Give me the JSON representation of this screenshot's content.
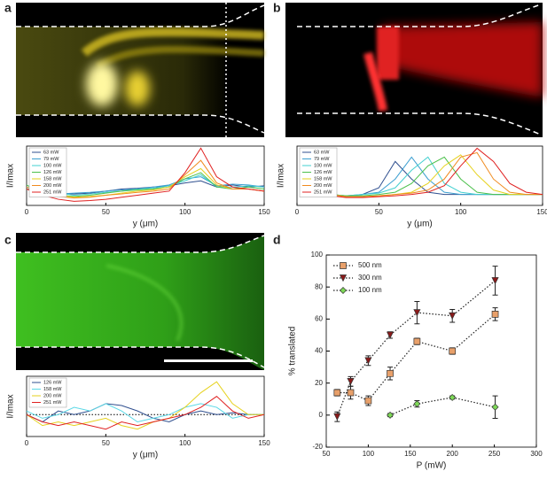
{
  "chart_data": [
    {
      "type": "line",
      "panel": "a",
      "xlabel": "y (μm)",
      "ylabel": "I/Imax",
      "x": [
        0,
        10,
        20,
        30,
        40,
        50,
        60,
        70,
        80,
        90,
        100,
        110,
        120,
        130,
        140,
        150
      ],
      "xlim": [
        0,
        150
      ],
      "xticks": [
        0,
        50,
        100,
        150
      ],
      "ylim": [
        -0.4,
        1.05
      ],
      "series": [
        {
          "name": "63 mW",
          "color": "#2f4f8f",
          "values": [
            0,
            -0.05,
            -0.1,
            -0.12,
            -0.1,
            -0.05,
            0,
            0.02,
            0.05,
            0.08,
            0.15,
            0.2,
            0.05,
            0.1,
            0.05,
            0.08
          ]
        },
        {
          "name": "79 mW",
          "color": "#3c9fd0",
          "values": [
            0,
            -0.08,
            -0.12,
            -0.1,
            -0.08,
            -0.05,
            -0.02,
            0,
            0.05,
            0.1,
            0.25,
            0.3,
            0.08,
            0.12,
            0.1,
            0.05
          ]
        },
        {
          "name": "100 mW",
          "color": "#43d0d0",
          "values": [
            0.05,
            -0.05,
            -0.1,
            -0.15,
            -0.12,
            -0.08,
            -0.05,
            0,
            0.02,
            0.08,
            0.2,
            0.35,
            0.05,
            0.05,
            0.08,
            0.05
          ]
        },
        {
          "name": "126 mW",
          "color": "#4cc04c",
          "values": [
            0.1,
            -0.1,
            -0.15,
            -0.18,
            -0.15,
            -0.1,
            -0.05,
            -0.02,
            0,
            0.05,
            0.25,
            0.4,
            0.05,
            0,
            0.05,
            0
          ]
        },
        {
          "name": "158 mW",
          "color": "#e6d21e",
          "values": [
            0,
            -0.12,
            -0.15,
            -0.2,
            -0.18,
            -0.15,
            -0.1,
            -0.05,
            -0.02,
            0.05,
            0.3,
            0.5,
            0.1,
            0,
            0,
            -0.05
          ]
        },
        {
          "name": "200 mW",
          "color": "#f08a1e",
          "values": [
            0.05,
            -0.1,
            -0.18,
            -0.22,
            -0.2,
            -0.15,
            -0.12,
            -0.08,
            -0.05,
            0,
            0.35,
            0.7,
            0.15,
            0,
            0,
            -0.05
          ]
        },
        {
          "name": "251 mW",
          "color": "#e02020",
          "values": [
            0,
            -0.15,
            -0.25,
            -0.3,
            -0.28,
            -0.25,
            -0.2,
            -0.15,
            -0.1,
            -0.05,
            0.4,
            1.0,
            0.3,
            0.05,
            0,
            -0.05
          ]
        }
      ]
    },
    {
      "type": "line",
      "panel": "b",
      "xlabel": "y (μm)",
      "ylabel": "I/Imax",
      "x": [
        0,
        10,
        20,
        30,
        40,
        50,
        60,
        70,
        80,
        90,
        100,
        110,
        120,
        130,
        140,
        150
      ],
      "xlim": [
        0,
        150
      ],
      "xticks": [
        0,
        50,
        100,
        150
      ],
      "ylim": [
        -0.3,
        1.05
      ],
      "series": [
        {
          "name": "63 mW",
          "color": "#2f4f8f",
          "values": [
            null,
            0,
            -0.05,
            -0.1,
            -0.05,
            0.1,
            0.7,
            0.3,
            0,
            -0.05,
            -0.05,
            -0.05,
            -0.05,
            -0.05,
            -0.05,
            -0.05
          ]
        },
        {
          "name": "79 mW",
          "color": "#3c9fd0",
          "values": [
            null,
            0,
            -0.05,
            -0.08,
            -0.05,
            0,
            0.3,
            0.8,
            0.3,
            0,
            -0.05,
            -0.05,
            -0.05,
            -0.05,
            -0.05,
            -0.05
          ]
        },
        {
          "name": "100 mW",
          "color": "#43d0d0",
          "values": [
            null,
            0,
            -0.05,
            -0.08,
            -0.05,
            -0.02,
            0.1,
            0.5,
            0.8,
            0.2,
            0,
            -0.05,
            -0.05,
            -0.05,
            -0.05,
            -0.05
          ]
        },
        {
          "name": "126 mW",
          "color": "#4cc04c",
          "values": [
            null,
            0,
            -0.05,
            -0.08,
            -0.08,
            -0.05,
            0,
            0.2,
            0.6,
            0.8,
            0.3,
            0,
            -0.05,
            -0.05,
            -0.05,
            -0.05
          ]
        },
        {
          "name": "158 mW",
          "color": "#e6d21e",
          "values": [
            null,
            0,
            -0.05,
            -0.1,
            -0.1,
            -0.08,
            -0.05,
            0,
            0.2,
            0.6,
            0.85,
            0.4,
            0.05,
            -0.05,
            -0.05,
            -0.05
          ]
        },
        {
          "name": "200 mW",
          "color": "#f08a1e",
          "values": [
            null,
            0,
            -0.05,
            -0.1,
            -0.1,
            -0.08,
            -0.05,
            -0.02,
            0.05,
            0.3,
            0.8,
            0.9,
            0.3,
            0,
            -0.05,
            -0.05
          ]
        },
        {
          "name": "251 mW",
          "color": "#e02020",
          "values": [
            null,
            0,
            -0.08,
            -0.12,
            -0.12,
            -0.1,
            -0.08,
            -0.05,
            0,
            0.15,
            0.6,
            1.0,
            0.7,
            0.2,
            0,
            -0.05
          ]
        }
      ]
    },
    {
      "type": "line",
      "panel": "c",
      "xlabel": "y (μm)",
      "ylabel": "I/Imax",
      "zero_line": true,
      "x": [
        0,
        10,
        20,
        30,
        40,
        50,
        60,
        70,
        80,
        90,
        100,
        110,
        120,
        130,
        140,
        150
      ],
      "xlim": [
        0,
        150
      ],
      "xticks": [
        0,
        50,
        100,
        150
      ],
      "ylim": [
        -0.6,
        1.05
      ],
      "series": [
        {
          "name": "126 mW",
          "color": "#2f4f8f",
          "values": [
            0,
            -0.2,
            0.1,
            0,
            0.1,
            0.3,
            0.25,
            0.1,
            -0.1,
            -0.2,
            0,
            0.1,
            0,
            0.05,
            0,
            0
          ]
        },
        {
          "name": "158 mW",
          "color": "#5ad8e6",
          "values": [
            0.1,
            -0.1,
            0,
            0.2,
            0.1,
            0.3,
            0.1,
            -0.2,
            -0.1,
            0,
            0.2,
            0.3,
            0.2,
            -0.1,
            0,
            0
          ]
        },
        {
          "name": "200 mW",
          "color": "#e6d21e",
          "values": [
            0,
            -0.3,
            -0.2,
            -0.3,
            -0.2,
            -0.1,
            -0.3,
            -0.4,
            -0.2,
            -0.1,
            0.2,
            0.6,
            0.9,
            0.3,
            0,
            0
          ]
        },
        {
          "name": "251 mW",
          "color": "#e02020",
          "values": [
            0,
            -0.2,
            -0.3,
            -0.2,
            -0.3,
            -0.4,
            -0.2,
            -0.3,
            -0.2,
            -0.1,
            0,
            0.2,
            0.5,
            0.1,
            -0.1,
            0
          ]
        }
      ]
    },
    {
      "type": "scatter",
      "panel": "d",
      "xlabel": "P (mW)",
      "ylabel": "% translated",
      "xlim": [
        50,
        300
      ],
      "xticks": [
        50,
        100,
        150,
        200,
        250,
        300
      ],
      "ylim": [
        -20,
        100
      ],
      "yticks": [
        -20,
        0,
        20,
        40,
        60,
        80,
        100
      ],
      "series": [
        {
          "name": "500 nm",
          "color": "#e8a06a",
          "marker": "square",
          "x": [
            63,
            79,
            100,
            126,
            158,
            200,
            251
          ],
          "values": [
            14,
            14,
            9,
            26,
            46,
            40,
            63
          ],
          "errors": [
            2,
            4,
            3,
            4,
            2,
            2,
            4
          ]
        },
        {
          "name": "300 nm",
          "color": "#8b1a1a",
          "marker": "triangle-down",
          "x": [
            63,
            79,
            100,
            126,
            158,
            200,
            251
          ],
          "values": [
            -1,
            21,
            34,
            50,
            64,
            62,
            84
          ],
          "errors": [
            3,
            3,
            3,
            2,
            7,
            4,
            9
          ]
        },
        {
          "name": "100 nm",
          "color": "#7ed957",
          "marker": "diamond",
          "x": [
            126,
            158,
            200,
            251
          ],
          "values": [
            0,
            7,
            11,
            5
          ],
          "errors": [
            1,
            2,
            1,
            7
          ]
        }
      ]
    }
  ]
}
